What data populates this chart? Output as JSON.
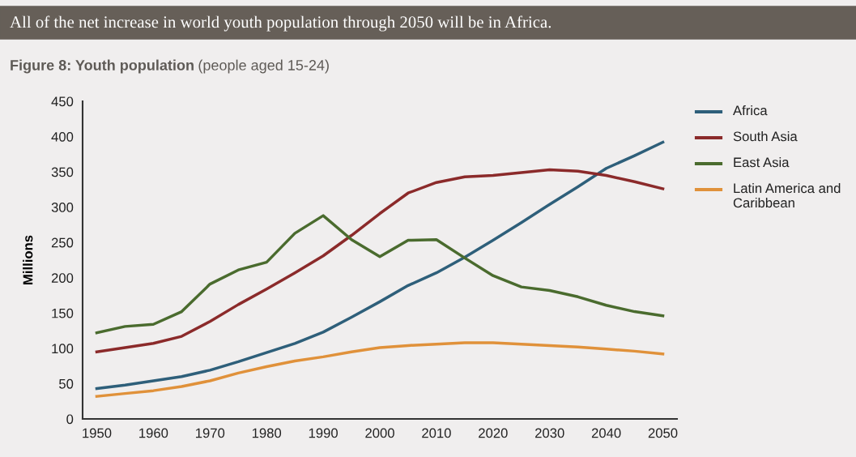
{
  "chart_data": {
    "type": "line",
    "annotations": [
      "All of the net increase in world youth population through 2050 will be in Africa."
    ],
    "title": "Figure 8: Youth population",
    "subtitle": "(people aged 15-24)",
    "ylabel": "Millions",
    "x": [
      1950,
      1955,
      1960,
      1965,
      1970,
      1975,
      1980,
      1985,
      1990,
      1995,
      2000,
      2005,
      2010,
      2015,
      2020,
      2025,
      2030,
      2035,
      2040,
      2045,
      2050
    ],
    "series": [
      {
        "name": "Africa",
        "color": "#2e5f7a",
        "values": [
          43,
          48,
          54,
          60,
          69,
          81,
          94,
          107,
          123,
          144,
          166,
          189,
          207,
          229,
          253,
          278,
          304,
          329,
          355,
          373,
          392
        ]
      },
      {
        "name": "South Asia",
        "color": "#8b2a2a",
        "values": [
          95,
          101,
          107,
          117,
          138,
          162,
          184,
          207,
          231,
          260,
          291,
          320,
          335,
          343,
          345,
          349,
          353,
          351,
          345,
          336,
          326
        ]
      },
      {
        "name": "East Asia",
        "color": "#4a6b2e",
        "values": [
          122,
          131,
          134,
          152,
          191,
          211,
          222,
          263,
          288,
          254,
          230,
          253,
          254,
          228,
          203,
          187,
          182,
          173,
          161,
          152,
          146
        ]
      },
      {
        "name": "Latin America and Caribbean",
        "color": "#e0913a",
        "values": [
          32,
          36,
          40,
          46,
          54,
          65,
          74,
          82,
          88,
          95,
          101,
          104,
          106,
          108,
          108,
          106,
          104,
          102,
          99,
          96,
          92
        ]
      }
    ],
    "xlim": [
      1947.5,
      2052.5
    ],
    "xticks": [
      1950,
      1960,
      1970,
      1980,
      1990,
      2000,
      2010,
      2020,
      2030,
      2040,
      2050
    ],
    "ylim": [
      0,
      450
    ],
    "yticks": [
      0,
      50,
      100,
      150,
      200,
      250,
      300,
      350,
      400,
      450
    ],
    "grid": false,
    "legend": "top right",
    "marker": "none",
    "line_style": "solid"
  }
}
